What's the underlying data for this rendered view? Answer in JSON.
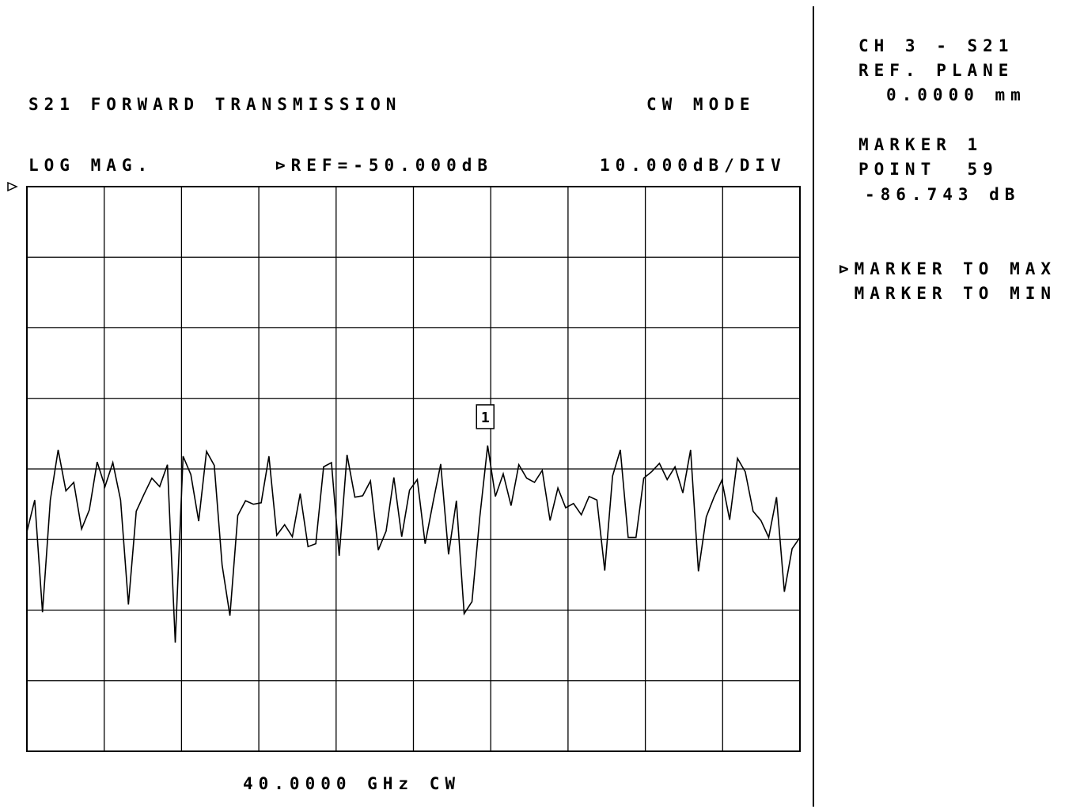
{
  "header": {
    "title": "S21 FORWARD TRANSMISSION",
    "mode": "CW MODE",
    "format": "LOG MAG.",
    "reference": "⊳REF=-50.000dB",
    "scale": "10.000dB/DIV"
  },
  "footer": {
    "stimulus": "40.0000 GHz CW"
  },
  "side_panel": {
    "channel": "CH 3 - S21",
    "ref_plane_label": "REF. PLANE",
    "ref_plane_value": "0.0000 mm",
    "marker_label": "MARKER 1",
    "marker_point": "POINT  59",
    "marker_value": "-86.743 dB",
    "menu": [
      {
        "label": "⊳MARKER TO MAX"
      },
      {
        "label": " MARKER TO MIN"
      }
    ]
  },
  "chart_data": {
    "type": "line",
    "title": "S21 FORWARD TRANSMISSION",
    "ylabel": "LOG MAG.",
    "xlabel": "40.0000 GHz CW",
    "reference_dB": -50,
    "scale_dB_per_div": 10,
    "divisions_x": 10,
    "divisions_y": 8,
    "ylim": [
      -130,
      -50
    ],
    "xlim": [
      0,
      100
    ],
    "grid": true,
    "marker": {
      "label": "1",
      "point": 59,
      "value_dB": -86.743
    },
    "series": [
      {
        "values": [
          -98.9,
          -94.4,
          -110.3,
          -94.4,
          -87.3,
          -93.1,
          -91.9,
          -98.5,
          -95.8,
          -89.0,
          -92.5,
          -89.1,
          -94.4,
          -109.2,
          -96.0,
          -93.6,
          -91.3,
          -92.5,
          -89.4,
          -114.6,
          -88.2,
          -90.8,
          -97.4,
          -87.5,
          -89.5,
          -103.6,
          -110.8,
          -96.6,
          -94.5,
          -95.0,
          -94.8,
          -88.2,
          -99.4,
          -97.9,
          -99.6,
          -93.5,
          -101.0,
          -100.6,
          -89.7,
          -89.1,
          -102.3,
          -88.0,
          -94.0,
          -93.8,
          -91.7,
          -101.5,
          -98.8,
          -91.2,
          -99.6,
          -93.0,
          -91.5,
          -100.6,
          -94.8,
          -89.3,
          -102.1,
          -94.5,
          -110.5,
          -108.8,
          -96.8,
          -86.7,
          -93.9,
          -90.7,
          -95.2,
          -89.4,
          -91.3,
          -91.9,
          -90.2,
          -97.3,
          -92.7,
          -95.5,
          -94.9,
          -96.5,
          -93.9,
          -94.4,
          -104.4,
          -91.0,
          -87.3,
          -99.7,
          -99.7,
          -91.3,
          -90.4,
          -89.2,
          -91.5,
          -89.7,
          -93.4,
          -87.3,
          -104.5,
          -96.8,
          -94.0,
          -91.6,
          -97.2,
          -88.5,
          -90.4,
          -96.0,
          -97.3,
          -99.7,
          -94.0,
          -107.4,
          -101.3,
          -99.7
        ]
      }
    ]
  }
}
